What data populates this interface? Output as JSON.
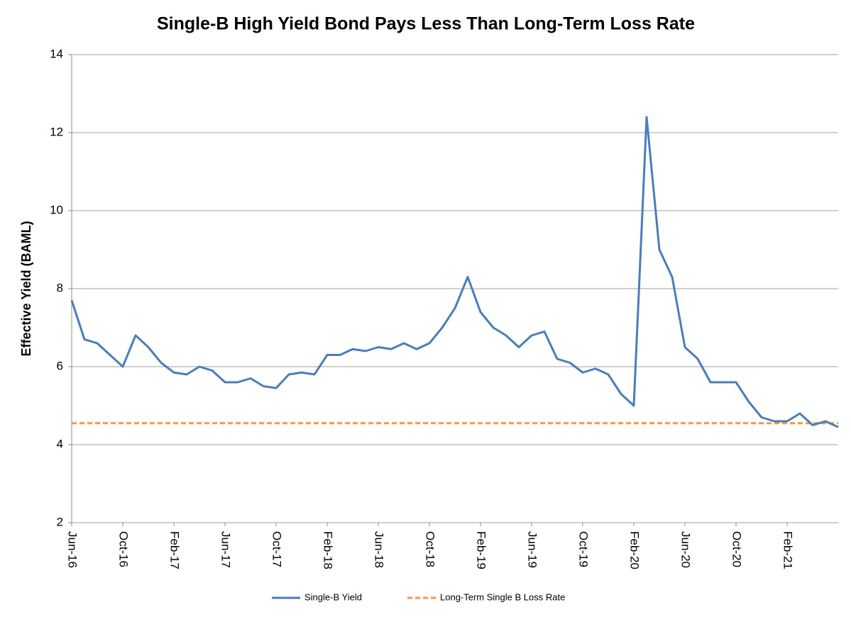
{
  "chart_data": {
    "type": "line",
    "title": "Single-B High Yield Bond Pays Less Than Long-Term Loss Rate",
    "ylabel": "Effective Yield (BAML)",
    "x": [
      "2016-06",
      "2016-07",
      "2016-08",
      "2016-09",
      "2016-10",
      "2016-11",
      "2016-12",
      "2017-01",
      "2017-02",
      "2017-03",
      "2017-04",
      "2017-05",
      "2017-06",
      "2017-07",
      "2017-08",
      "2017-09",
      "2017-10",
      "2017-11",
      "2017-12",
      "2018-01",
      "2018-02",
      "2018-03",
      "2018-04",
      "2018-05",
      "2018-06",
      "2018-07",
      "2018-08",
      "2018-09",
      "2018-10",
      "2018-11",
      "2018-12",
      "2019-01",
      "2019-02",
      "2019-03",
      "2019-04",
      "2019-05",
      "2019-06",
      "2019-07",
      "2019-08",
      "2019-09",
      "2019-10",
      "2019-11",
      "2019-12",
      "2020-01",
      "2020-02",
      "2020-03",
      "2020-04",
      "2020-05",
      "2020-06",
      "2020-07",
      "2020-08",
      "2020-09",
      "2020-10",
      "2020-11",
      "2020-12",
      "2021-01",
      "2021-02",
      "2021-03",
      "2021-04",
      "2021-05",
      "2021-06"
    ],
    "series": [
      {
        "name": "Single-B Yield",
        "color": "#4a7ebb",
        "values": [
          7.7,
          6.7,
          6.6,
          6.3,
          6.0,
          6.8,
          6.5,
          6.1,
          5.85,
          5.8,
          6.0,
          5.9,
          5.6,
          5.6,
          5.7,
          5.5,
          5.45,
          5.8,
          5.85,
          5.8,
          6.3,
          6.3,
          6.45,
          6.4,
          6.5,
          6.45,
          6.6,
          6.45,
          6.6,
          7.0,
          7.5,
          8.3,
          7.4,
          7.0,
          6.8,
          6.5,
          6.8,
          6.9,
          6.2,
          6.1,
          5.85,
          5.95,
          5.8,
          5.3,
          5.0,
          12.4,
          9.0,
          8.3,
          6.5,
          6.2,
          5.6,
          5.6,
          5.6,
          5.1,
          4.7,
          4.6,
          4.6,
          4.8,
          4.5,
          4.6,
          4.45
        ]
      }
    ],
    "reference_line": {
      "name": "Long-Term Single B Loss Rate",
      "value": 4.55,
      "color": "#f79646",
      "dashed": true
    },
    "xlim": [
      "2016-06",
      "2021-06"
    ],
    "xticks": [
      {
        "value": "2016-06",
        "label": "Jun-16"
      },
      {
        "value": "2016-10",
        "label": "Oct-16"
      },
      {
        "value": "2017-02",
        "label": "Feb-17"
      },
      {
        "value": "2017-06",
        "label": "Jun-17"
      },
      {
        "value": "2017-10",
        "label": "Oct-17"
      },
      {
        "value": "2018-02",
        "label": "Feb-18"
      },
      {
        "value": "2018-06",
        "label": "Jun-18"
      },
      {
        "value": "2018-10",
        "label": "Oct-18"
      },
      {
        "value": "2019-02",
        "label": "Feb-19"
      },
      {
        "value": "2019-06",
        "label": "Jun-19"
      },
      {
        "value": "2019-10",
        "label": "Oct-19"
      },
      {
        "value": "2020-02",
        "label": "Feb-20"
      },
      {
        "value": "2020-06",
        "label": "Jun-20"
      },
      {
        "value": "2020-10",
        "label": "Oct-20"
      },
      {
        "value": "2021-02",
        "label": "Feb-21"
      }
    ],
    "ylim": [
      2,
      14
    ],
    "yticks": [
      2,
      4,
      6,
      8,
      10,
      12,
      14
    ],
    "grid": true,
    "legend": "bottom"
  }
}
